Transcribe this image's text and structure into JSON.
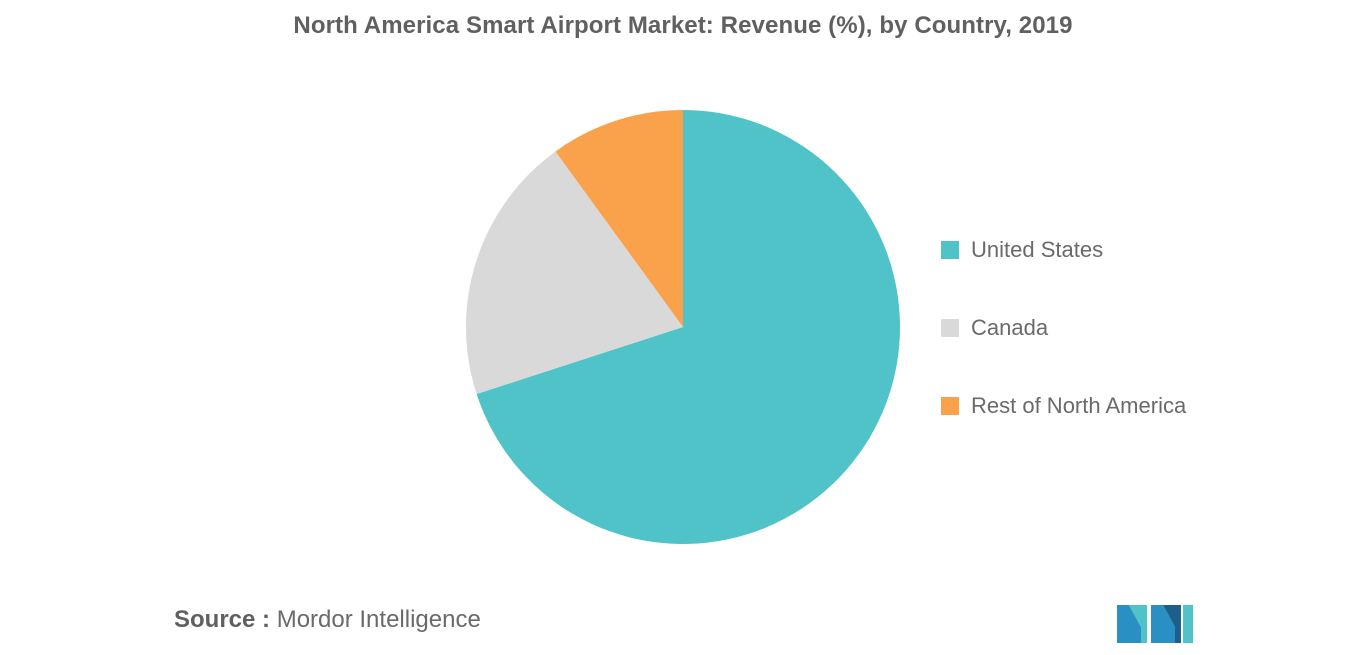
{
  "chart_data": {
    "type": "pie",
    "title": "North America Smart Airport Market: Revenue (%), by Country, 2019",
    "categories": [
      "United States",
      "Canada",
      "Rest of North America"
    ],
    "values": [
      70,
      20,
      10
    ],
    "unit": "%",
    "colors": [
      "#4fc3c8",
      "#d9d9d9",
      "#f9a14b"
    ],
    "start_angle_deg": 0,
    "direction": "clockwise",
    "legend_position": "right"
  },
  "source": {
    "label": "Source :",
    "text": "Mordor Intelligence"
  },
  "logo": {
    "icon": "mordor-intelligence-logo-icon",
    "colors": [
      "#2a8fc2",
      "#4fc3c8",
      "#1d5f8a"
    ]
  }
}
